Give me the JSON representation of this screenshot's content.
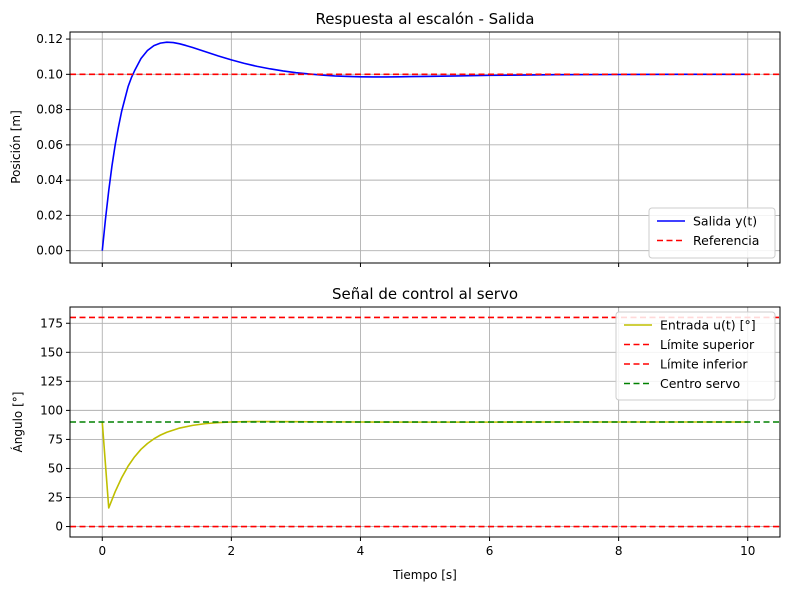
{
  "chart_data": [
    {
      "type": "line",
      "title": "Respuesta al escalón - Salida",
      "ylabel": "Posición [m]",
      "xlabel": "",
      "xlim": [
        -0.5,
        10.5
      ],
      "ylim": [
        -0.007,
        0.124
      ],
      "xticks": [
        0,
        2,
        4,
        6,
        8,
        10
      ],
      "yticks": [
        0.0,
        0.02,
        0.04,
        0.06,
        0.08,
        0.1,
        0.12
      ],
      "ytick_labels": [
        "0.00",
        "0.02",
        "0.04",
        "0.06",
        "0.08",
        "0.10",
        "0.12"
      ],
      "grid": true,
      "legend_position": "lower-right",
      "series": [
        {
          "name": "Salida y(t)",
          "color": "#0000ff",
          "style": "solid",
          "x": [
            0,
            0.05,
            0.1,
            0.15,
            0.2,
            0.25,
            0.3,
            0.35,
            0.4,
            0.45,
            0.5,
            0.6,
            0.7,
            0.8,
            0.9,
            1.0,
            1.1,
            1.2,
            1.3,
            1.4,
            1.5,
            1.6,
            1.8,
            2.0,
            2.2,
            2.4,
            2.6,
            2.8,
            3.0,
            3.2,
            3.4,
            3.6,
            3.8,
            4.0,
            4.2,
            4.4,
            4.6,
            4.8,
            5.0,
            5.5,
            6.0,
            6.5,
            7.0,
            8.0,
            9.0,
            10.0
          ],
          "y": [
            0.0,
            0.018,
            0.034,
            0.048,
            0.06,
            0.07,
            0.079,
            0.086,
            0.093,
            0.098,
            0.102,
            0.109,
            0.1135,
            0.1163,
            0.1177,
            0.1182,
            0.118,
            0.1173,
            0.1163,
            0.1152,
            0.114,
            0.1128,
            0.1104,
            0.1082,
            0.1062,
            0.1045,
            0.1031,
            0.1019,
            0.1009,
            0.1002,
            0.0996,
            0.0991,
            0.0988,
            0.0986,
            0.0985,
            0.0985,
            0.0986,
            0.0987,
            0.0988,
            0.0991,
            0.0994,
            0.0996,
            0.0998,
            0.0999,
            0.1,
            0.1
          ]
        },
        {
          "name": "Referencia",
          "color": "#ff0000",
          "style": "dashed",
          "hline": 0.1
        }
      ]
    },
    {
      "type": "line",
      "title": "Señal de control al servo",
      "ylabel": "Ángulo [°]",
      "xlabel": "Tiempo [s]",
      "xlim": [
        -0.5,
        10.5
      ],
      "ylim": [
        -9,
        189
      ],
      "xticks": [
        0,
        2,
        4,
        6,
        8,
        10
      ],
      "yticks": [
        0,
        25,
        50,
        75,
        100,
        125,
        150,
        175
      ],
      "ytick_labels": [
        "0",
        "25",
        "50",
        "75",
        "100",
        "125",
        "150",
        "175"
      ],
      "grid": true,
      "legend_position": "upper-right",
      "series": [
        {
          "name": "Entrada u(t) [°]",
          "color": "#bfbf00",
          "style": "solid",
          "x": [
            0,
            0.1,
            0.2,
            0.3,
            0.4,
            0.5,
            0.6,
            0.7,
            0.8,
            0.9,
            1.0,
            1.2,
            1.4,
            1.6,
            1.8,
            2.0,
            2.2,
            2.5,
            3.0,
            3.5,
            4.0,
            5.0,
            6.0,
            7.0,
            8.0,
            9.0,
            10.0
          ],
          "y": [
            90,
            16,
            30,
            42,
            52,
            60,
            66.5,
            71.5,
            75.5,
            78.7,
            81.2,
            84.8,
            87.1,
            88.6,
            89.5,
            90.0,
            90.3,
            90.4,
            90.3,
            90.1,
            90.0,
            89.9,
            89.9,
            90.0,
            90.0,
            90.0,
            90.0
          ]
        },
        {
          "name": "Límite superior",
          "color": "#ff0000",
          "style": "dashed",
          "hline": 180
        },
        {
          "name": "Límite inferior",
          "color": "#ff0000",
          "style": "dashed",
          "hline": 0
        },
        {
          "name": "Centro servo",
          "color": "#008000",
          "style": "dashed",
          "hline": 90
        }
      ]
    }
  ]
}
